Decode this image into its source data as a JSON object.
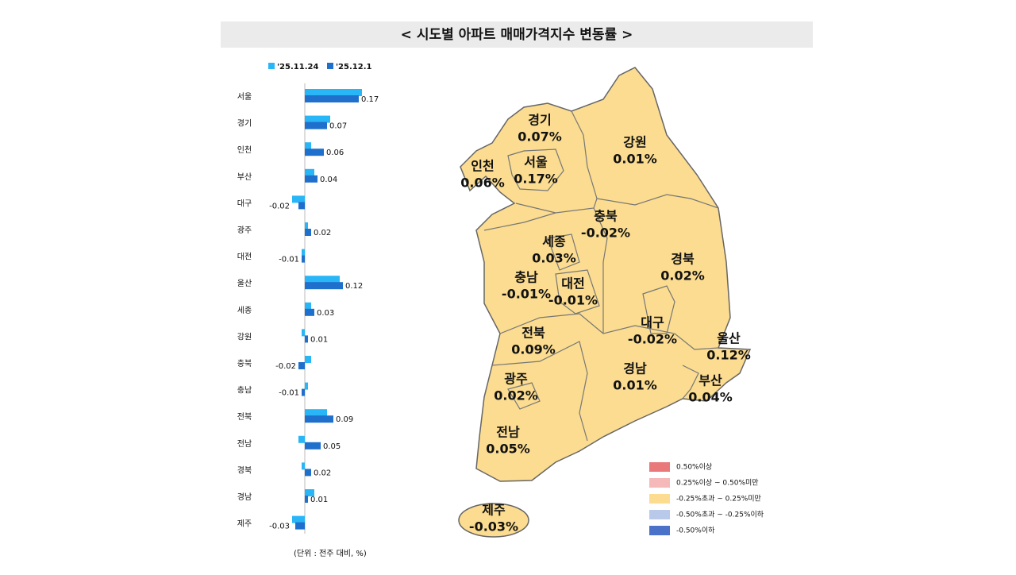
{
  "chart_data": [
    {
      "type": "hbar",
      "title": "< 시도별 아파트 매매가격지수 변동률 >",
      "note": "(단위 : 전주 대비, %)",
      "categories": [
        "서울",
        "경기",
        "인천",
        "부산",
        "대구",
        "광주",
        "대전",
        "울산",
        "세종",
        "강원",
        "충북",
        "충남",
        "전북",
        "전남",
        "경북",
        "경남",
        "제주"
      ],
      "xlim": [
        -0.05,
        0.2
      ],
      "series": [
        {
          "name": "'25.11.24",
          "color": "#29b6f6",
          "values": [
            0.18,
            0.08,
            0.02,
            0.03,
            -0.04,
            0.01,
            -0.01,
            0.11,
            0.02,
            -0.01,
            0.02,
            0.01,
            0.07,
            -0.02,
            -0.01,
            0.03,
            -0.04
          ]
        },
        {
          "name": "'25.12.1",
          "color": "#1f6fcc",
          "values": [
            0.17,
            0.07,
            0.06,
            0.04,
            -0.02,
            0.02,
            -0.01,
            0.12,
            0.03,
            0.01,
            -0.02,
            -0.01,
            0.09,
            0.05,
            0.02,
            0.01,
            -0.03
          ],
          "labeled": true
        }
      ]
    },
    {
      "type": "map",
      "regions": [
        "서울",
        "경기",
        "인천",
        "부산",
        "대구",
        "광주",
        "대전",
        "울산",
        "세종",
        "강원",
        "충북",
        "충남",
        "전북",
        "전남",
        "경북",
        "경남",
        "제주"
      ],
      "values": [
        0.17,
        0.07,
        0.06,
        0.04,
        -0.02,
        0.02,
        -0.01,
        0.12,
        0.03,
        0.01,
        -0.02,
        -0.01,
        0.09,
        0.05,
        0.02,
        0.01,
        -0.03
      ],
      "value_labels": [
        "0.17%",
        "0.07%",
        "0.06%",
        "0.04%",
        "-0.02%",
        "0.02%",
        "-0.01%",
        "0.12%",
        "0.03%",
        "0.01%",
        "-0.02%",
        "-0.01%",
        "0.09%",
        "0.05%",
        "0.02%",
        "0.01%",
        "-0.03%"
      ],
      "legend": [
        {
          "name": "0.50%이상",
          "color": "#e8787a"
        },
        {
          "name": "0.25%이상 ~ 0.50%미만",
          "color": "#f5b9b9"
        },
        {
          "name": "-0.25%초과 ~ 0.25%미만",
          "color": "#fbdc90"
        },
        {
          "name": "-0.50%초과 ~ -0.25%이하",
          "color": "#b9c9e9"
        },
        {
          "name": "-0.50%이하",
          "color": "#4a72c8"
        }
      ],
      "land_legend_index": 2
    }
  ]
}
